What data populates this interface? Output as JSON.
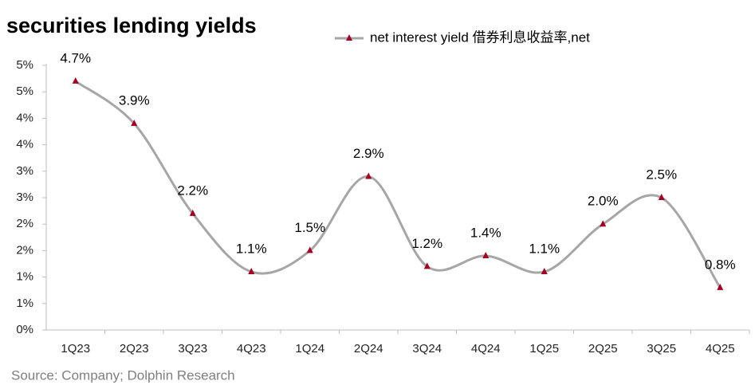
{
  "chart_data": {
    "type": "line",
    "title": "securities lending yields",
    "source": "Source: Company; Dolphin Research",
    "categories": [
      "1Q23",
      "2Q23",
      "3Q23",
      "4Q23",
      "1Q24",
      "2Q24",
      "3Q24",
      "4Q24",
      "1Q25",
      "2Q25",
      "3Q25",
      "4Q25"
    ],
    "series": [
      {
        "name": "net interest yield 借券利息收益率,net",
        "color": "#a6a6a6",
        "marker_color": "#a50021",
        "values": [
          4.7,
          3.9,
          2.2,
          1.1,
          1.5,
          2.9,
          1.2,
          1.4,
          1.1,
          2.0,
          2.5,
          0.8
        ],
        "value_labels": [
          "4.7%",
          "3.9%",
          "2.2%",
          "1.1%",
          "1.5%",
          "2.9%",
          "1.2%",
          "1.4%",
          "1.1%",
          "2.0%",
          "2.5%",
          "0.8%"
        ]
      }
    ],
    "ylim": [
      0,
      5
    ],
    "yticks": [
      {
        "value": 0,
        "label": "0%"
      },
      {
        "value": 0.5,
        "label": "1%"
      },
      {
        "value": 1,
        "label": "1%"
      },
      {
        "value": 1.5,
        "label": "2%"
      },
      {
        "value": 2,
        "label": "2%"
      },
      {
        "value": 2.5,
        "label": "3%"
      },
      {
        "value": 3,
        "label": "3%"
      },
      {
        "value": 3.5,
        "label": "4%"
      },
      {
        "value": 4,
        "label": "4%"
      },
      {
        "value": 4.5,
        "label": "5%"
      },
      {
        "value": 5,
        "label": "5%"
      }
    ],
    "smooth": true,
    "grid": false
  }
}
